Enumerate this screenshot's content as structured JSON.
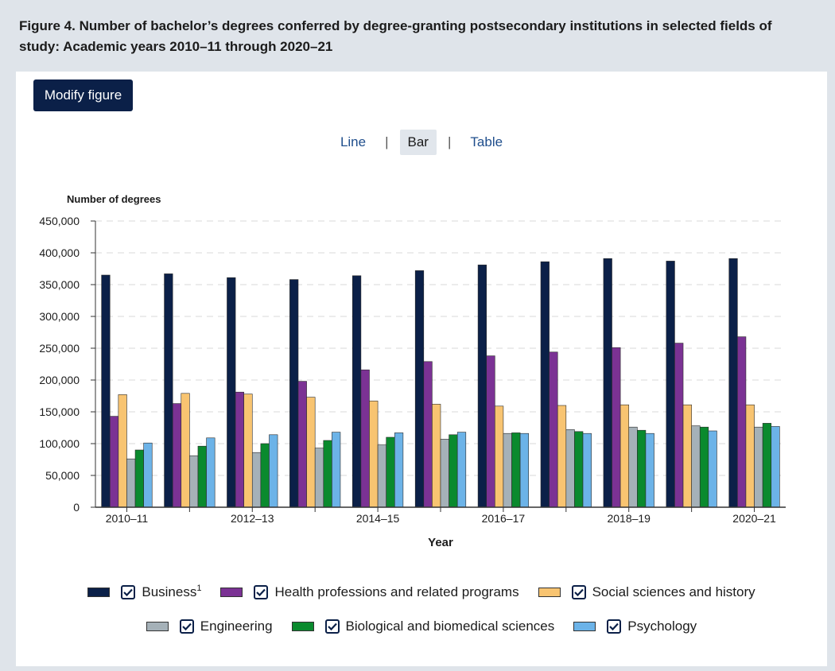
{
  "figure": {
    "title": "Figure 4. Number of bachelor’s degrees conferred by degree-granting postsecondary institutions in selected fields of study: Academic years 2010–11 through 2020–21"
  },
  "toolbar": {
    "modify_label": "Modify figure"
  },
  "view_tabs": {
    "line": "Line",
    "bar": "Bar",
    "table": "Table",
    "separator": "|",
    "active": "bar"
  },
  "colors": {
    "button_bg": "#0b2048",
    "active_tab_bg": "#e1e6ec",
    "link": "#1f4e8c"
  },
  "chart_data": {
    "type": "bar",
    "ylabel": "Number of degrees",
    "xlabel": "Year",
    "ylim": [
      0,
      450000
    ],
    "yticks": [
      0,
      50000,
      100000,
      150000,
      200000,
      250000,
      300000,
      350000,
      400000,
      450000
    ],
    "ytick_labels": [
      "0",
      "50,000",
      "100,000",
      "150,000",
      "200,000",
      "250,000",
      "300,000",
      "350,000",
      "400,000",
      "450,000"
    ],
    "grid": "horizontal-dashed",
    "categories": [
      "2010–11",
      "2011–12",
      "2012–13",
      "2013–14",
      "2014–15",
      "2015–16",
      "2016–17",
      "2017–18",
      "2018–19",
      "2019–20",
      "2020–21"
    ],
    "xtick_labels": [
      "2010–11",
      "",
      "2012–13",
      "",
      "2014–15",
      "",
      "2016–17",
      "",
      "2018–19",
      "",
      "2020–21"
    ],
    "series": [
      {
        "name": "Business",
        "footnote": "1",
        "color": "#0b2048",
        "values": [
          365000,
          367000,
          361000,
          358000,
          364000,
          372000,
          381000,
          386000,
          391000,
          387000,
          391000
        ]
      },
      {
        "name": "Health professions and related programs",
        "color": "#7b3294",
        "values": [
          143000,
          163000,
          181000,
          198000,
          216000,
          229000,
          238000,
          244000,
          251000,
          258000,
          268000
        ]
      },
      {
        "name": "Social sciences and history",
        "color": "#f8c471",
        "values": [
          177000,
          179000,
          178000,
          173000,
          167000,
          162000,
          159000,
          160000,
          161000,
          161000,
          161000
        ]
      },
      {
        "name": "Engineering",
        "color": "#a5b1b8",
        "values": [
          76000,
          81000,
          86000,
          93000,
          98000,
          107000,
          116000,
          122000,
          126000,
          128000,
          126000
        ]
      },
      {
        "name": "Biological and biomedical sciences",
        "color": "#0a8a2e",
        "values": [
          90000,
          96000,
          100000,
          105000,
          110000,
          114000,
          117000,
          119000,
          121000,
          126000,
          132000
        ]
      },
      {
        "name": "Psychology",
        "color": "#6cb3e8",
        "values": [
          101000,
          109000,
          114000,
          118000,
          117000,
          118000,
          116000,
          116000,
          116000,
          120000,
          127000
        ]
      }
    ],
    "legend": "bottom"
  }
}
